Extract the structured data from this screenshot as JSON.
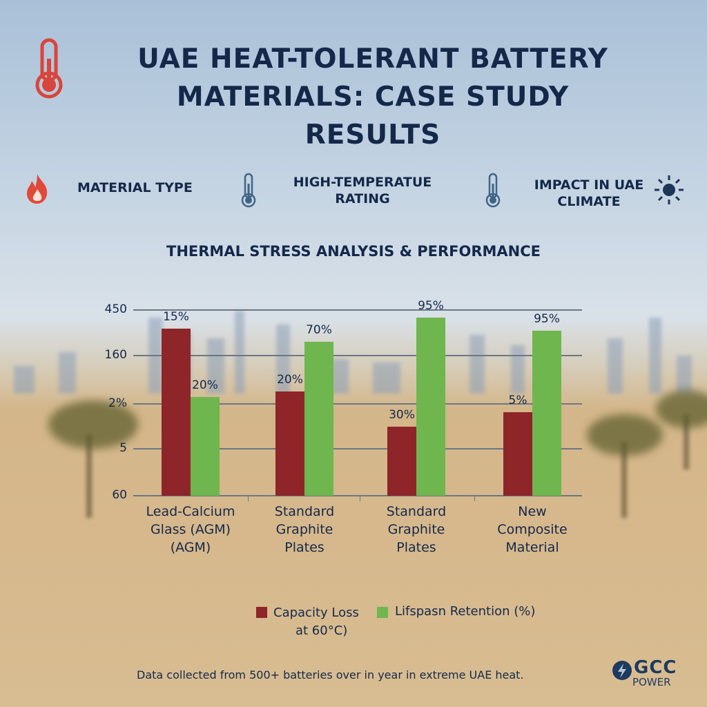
{
  "title": {
    "line1": "UAE HEAT-TOLERANT BATTERY",
    "line2": "MATERIALS: CASE STUDY RESULTS"
  },
  "headers": [
    {
      "label": "MATERIAL TYPE",
      "icon": "flame-icon"
    },
    {
      "label": "HIGH-TEMPERATUE RATING",
      "icon": "thermometer-icon"
    },
    {
      "label": "IMPACT IN UAE CLIMATE",
      "icon": "thermometer-icon",
      "trailing_icon": "sun-icon"
    }
  ],
  "colors": {
    "capacity_loss": "#8e2529",
    "lifespan": "#6fb64e",
    "text": "#14284a",
    "title_icon": "#d9453b"
  },
  "chart_data": {
    "type": "bar",
    "title": "THERMAL STRESS ANALYSIS & PERFORMANCE",
    "y_tick_labels": [
      "450",
      "160",
      "2%",
      "5",
      "60"
    ],
    "grid": true,
    "legend_position": "bottom",
    "categories": [
      "Lead-Calcium Glass (AGM) (AGM)",
      "Standard Graphite Plates",
      "Standard Graphite Plates",
      "New Composite Material"
    ],
    "category_lines": [
      [
        "Lead-Calcium",
        "Glass (AGM)",
        "(AGM)"
      ],
      [
        "Standard",
        "Graphite",
        "Plates"
      ],
      [
        "Standard",
        "Graphite",
        "Plates"
      ],
      [
        "New",
        "Composite",
        "Material"
      ]
    ],
    "series": [
      {
        "name": "Capacity Loss at 60°C)",
        "legend_lines": [
          "Capacity Loss",
          "at 60°C)"
        ],
        "bar_level_fraction": [
          0.9,
          0.56,
          0.37,
          0.45
        ],
        "data_labels": [
          "15%",
          "20%",
          "30%",
          "5%"
        ]
      },
      {
        "name": "Lifspasn Retention (%)",
        "bar_level_fraction": [
          0.53,
          0.83,
          0.96,
          0.89
        ],
        "data_labels": [
          "20%",
          "70%",
          "95%",
          "95%"
        ]
      }
    ]
  },
  "footer": "Data collected from 500+ batteries over in year in extreme UAE heat.",
  "logo": {
    "top": "GCC",
    "bottom": "POWER"
  }
}
